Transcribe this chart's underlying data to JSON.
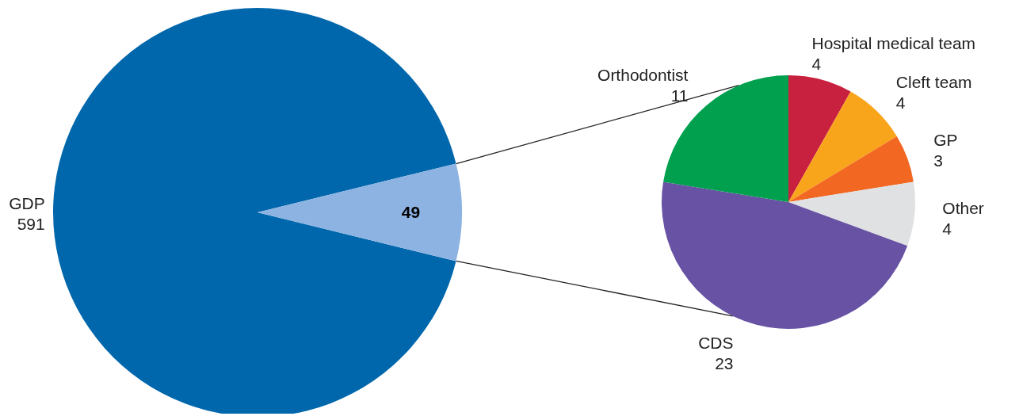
{
  "chart_data": [
    {
      "type": "pie",
      "categories": [
        "GDP",
        null
      ],
      "values": [
        591,
        49
      ],
      "colors": [
        "#0067ac",
        "#8db3e2"
      ],
      "data_labels": true
    },
    {
      "type": "pie",
      "categories": [
        "Hospital medical team",
        "Cleft team",
        "GP",
        "Other",
        "CDS",
        "Orthodontist"
      ],
      "values": [
        4,
        4,
        3,
        4,
        23,
        11
      ],
      "colors": [
        "#c8203f",
        "#f9a51b",
        "#f26722",
        "#e0e1e3",
        "#6752a3",
        "#00a04f"
      ],
      "data_labels": true
    }
  ]
}
